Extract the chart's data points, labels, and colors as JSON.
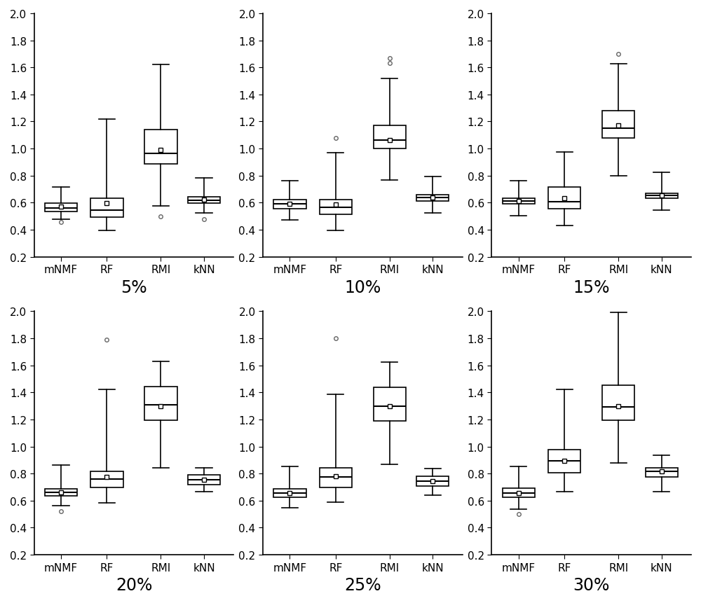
{
  "subplots": [
    {
      "label": "5%",
      "methods": [
        "mNMF",
        "RF",
        "RMI",
        "kNN"
      ],
      "data": {
        "mNMF": {
          "whislo": 0.48,
          "q1": 0.535,
          "med": 0.56,
          "q3": 0.595,
          "whishi": 0.715,
          "mean": 0.57,
          "fliers_low": [
            0.455
          ],
          "fliers_high": []
        },
        "RF": {
          "whislo": 0.395,
          "q1": 0.495,
          "med": 0.545,
          "q3": 0.635,
          "whishi": 1.22,
          "mean": 0.595,
          "fliers_low": [],
          "fliers_high": []
        },
        "RMI": {
          "whislo": 0.575,
          "q1": 0.885,
          "med": 0.965,
          "q3": 1.14,
          "whishi": 1.62,
          "mean": 0.99,
          "fliers_low": [
            0.5
          ],
          "fliers_high": []
        },
        "kNN": {
          "whislo": 0.525,
          "q1": 0.598,
          "med": 0.62,
          "q3": 0.645,
          "whishi": 0.785,
          "mean": 0.625,
          "fliers_low": [
            0.478
          ],
          "fliers_high": []
        }
      }
    },
    {
      "label": "10%",
      "methods": [
        "mNMF",
        "RF",
        "RMI",
        "kNN"
      ],
      "data": {
        "mNMF": {
          "whislo": 0.475,
          "q1": 0.555,
          "med": 0.59,
          "q3": 0.625,
          "whishi": 0.765,
          "mean": 0.59,
          "fliers_low": [],
          "fliers_high": []
        },
        "RF": {
          "whislo": 0.395,
          "q1": 0.515,
          "med": 0.565,
          "q3": 0.625,
          "whishi": 0.97,
          "mean": 0.585,
          "fliers_low": [],
          "fliers_high": [
            1.08
          ]
        },
        "RMI": {
          "whislo": 0.77,
          "q1": 1.0,
          "med": 1.065,
          "q3": 1.17,
          "whishi": 1.52,
          "mean": 1.065,
          "fliers_low": [],
          "fliers_high": [
            1.63,
            1.67
          ]
        },
        "kNN": {
          "whislo": 0.525,
          "q1": 0.615,
          "med": 0.64,
          "q3": 0.66,
          "whishi": 0.795,
          "mean": 0.64,
          "fliers_low": [],
          "fliers_high": []
        }
      }
    },
    {
      "label": "15%",
      "methods": [
        "mNMF",
        "RF",
        "RMI",
        "kNN"
      ],
      "data": {
        "mNMF": {
          "whislo": 0.505,
          "q1": 0.59,
          "med": 0.615,
          "q3": 0.635,
          "whishi": 0.765,
          "mean": 0.61,
          "fliers_low": [],
          "fliers_high": []
        },
        "RF": {
          "whislo": 0.43,
          "q1": 0.555,
          "med": 0.605,
          "q3": 0.715,
          "whishi": 0.975,
          "mean": 0.635,
          "fliers_low": [],
          "fliers_high": []
        },
        "RMI": {
          "whislo": 0.8,
          "q1": 1.08,
          "med": 1.15,
          "q3": 1.28,
          "whishi": 1.625,
          "mean": 1.17,
          "fliers_low": [],
          "fliers_high": [
            1.7
          ]
        },
        "kNN": {
          "whislo": 0.545,
          "q1": 0.635,
          "med": 0.655,
          "q3": 0.67,
          "whishi": 0.825,
          "mean": 0.655,
          "fliers_low": [],
          "fliers_high": []
        }
      }
    },
    {
      "label": "20%",
      "methods": [
        "mNMF",
        "RF",
        "RMI",
        "kNN"
      ],
      "data": {
        "mNMF": {
          "whislo": 0.565,
          "q1": 0.635,
          "med": 0.66,
          "q3": 0.685,
          "whishi": 0.865,
          "mean": 0.66,
          "fliers_low": [
            0.52
          ],
          "fliers_high": []
        },
        "RF": {
          "whislo": 0.585,
          "q1": 0.695,
          "med": 0.76,
          "q3": 0.815,
          "whishi": 1.42,
          "mean": 0.775,
          "fliers_low": [],
          "fliers_high": [
            1.79
          ]
        },
        "RMI": {
          "whislo": 0.84,
          "q1": 1.195,
          "med": 1.31,
          "q3": 1.445,
          "whishi": 1.63,
          "mean": 1.3,
          "fliers_low": [],
          "fliers_high": []
        },
        "kNN": {
          "whislo": 0.665,
          "q1": 0.72,
          "med": 0.755,
          "q3": 0.79,
          "whishi": 0.845,
          "mean": 0.755,
          "fliers_low": [],
          "fliers_high": []
        }
      }
    },
    {
      "label": "25%",
      "methods": [
        "mNMF",
        "RF",
        "RMI",
        "kNN"
      ],
      "data": {
        "mNMF": {
          "whislo": 0.545,
          "q1": 0.625,
          "med": 0.655,
          "q3": 0.685,
          "whishi": 0.855,
          "mean": 0.655,
          "fliers_low": [],
          "fliers_high": []
        },
        "RF": {
          "whislo": 0.59,
          "q1": 0.695,
          "med": 0.775,
          "q3": 0.84,
          "whishi": 1.385,
          "mean": 0.78,
          "fliers_low": [],
          "fliers_high": [
            1.8
          ]
        },
        "RMI": {
          "whislo": 0.87,
          "q1": 1.19,
          "med": 1.3,
          "q3": 1.44,
          "whishi": 1.625,
          "mean": 1.3,
          "fliers_low": [],
          "fliers_high": []
        },
        "kNN": {
          "whislo": 0.64,
          "q1": 0.71,
          "med": 0.745,
          "q3": 0.78,
          "whishi": 0.835,
          "mean": 0.745,
          "fliers_low": [],
          "fliers_high": []
        }
      }
    },
    {
      "label": "30%",
      "methods": [
        "mNMF",
        "RF",
        "RMI",
        "kNN"
      ],
      "data": {
        "mNMF": {
          "whislo": 0.535,
          "q1": 0.625,
          "med": 0.655,
          "q3": 0.69,
          "whishi": 0.855,
          "mean": 0.655,
          "fliers_low": [
            0.5
          ],
          "fliers_high": []
        },
        "RF": {
          "whislo": 0.665,
          "q1": 0.805,
          "med": 0.895,
          "q3": 0.975,
          "whishi": 1.42,
          "mean": 0.895,
          "fliers_low": [],
          "fliers_high": []
        },
        "RMI": {
          "whislo": 0.88,
          "q1": 1.195,
          "med": 1.295,
          "q3": 1.455,
          "whishi": 1.99,
          "mean": 1.3,
          "fliers_low": [],
          "fliers_high": []
        },
        "kNN": {
          "whislo": 0.665,
          "q1": 0.775,
          "med": 0.815,
          "q3": 0.845,
          "whishi": 0.935,
          "mean": 0.815,
          "fliers_low": [],
          "fliers_high": []
        }
      }
    }
  ],
  "ylim": [
    0.2,
    2.0
  ],
  "yticks": [
    0.2,
    0.4,
    0.6,
    0.8,
    1.0,
    1.2,
    1.4,
    1.6,
    1.8,
    2.0
  ],
  "label_fontsize": 17,
  "tick_fontsize": 11,
  "edge_color": "black",
  "median_color": "black",
  "mean_marker": "s",
  "flier_marker": "o",
  "flier_size": 4,
  "box_width": 0.6,
  "background_color": "white",
  "positions": [
    0.7,
    1.55,
    2.55,
    3.35
  ]
}
